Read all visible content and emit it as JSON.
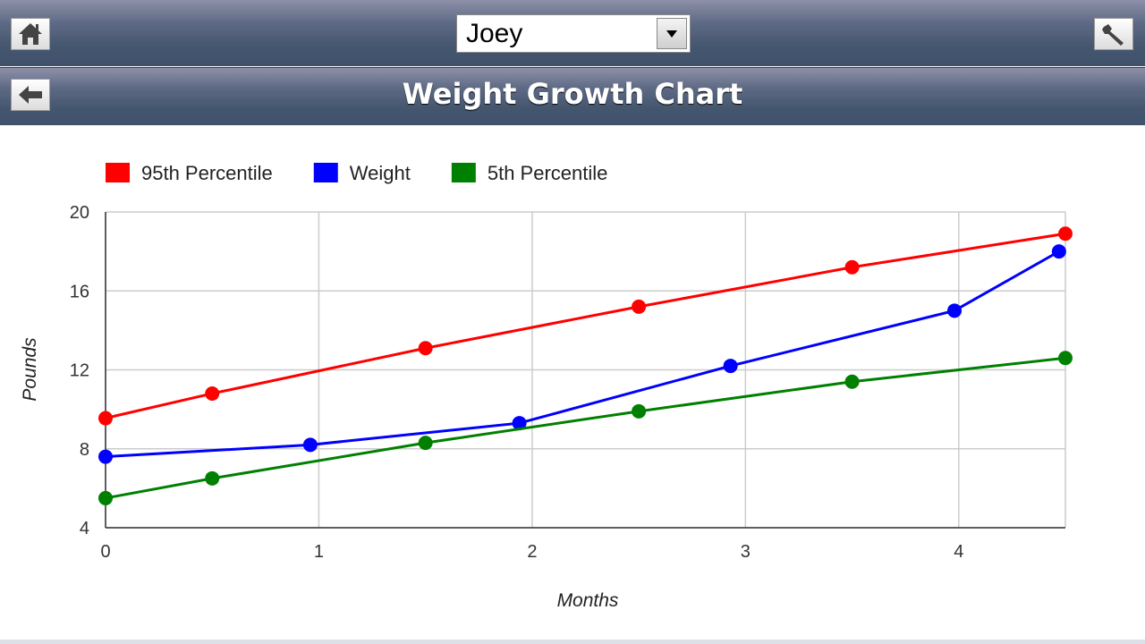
{
  "header": {
    "home_icon": "home-icon",
    "settings_icon": "wrench-icon",
    "back_icon": "arrow-left-icon",
    "child_select": {
      "selected": "Joey"
    },
    "title": "Weight Growth Chart"
  },
  "chart_data": {
    "type": "line",
    "title": "",
    "xlabel": "Months",
    "ylabel": "Pounds",
    "xlim": [
      0,
      4.5
    ],
    "ylim": [
      4,
      20
    ],
    "xticks": [
      0,
      1,
      2,
      3,
      4
    ],
    "yticks": [
      4,
      8,
      12,
      16,
      20
    ],
    "grid": true,
    "legend_position": "top-left",
    "series": [
      {
        "name": "95th Percentile",
        "color": "#ff0000",
        "points": [
          [
            0,
            9.55
          ],
          [
            0.5,
            10.8
          ],
          [
            1.5,
            13.1
          ],
          [
            2.5,
            15.2
          ],
          [
            3.5,
            17.2
          ],
          [
            4.5,
            18.9
          ]
        ]
      },
      {
        "name": "Weight",
        "color": "#0000ff",
        "points": [
          [
            0,
            7.6
          ],
          [
            0.96,
            8.2
          ],
          [
            1.94,
            9.3
          ],
          [
            2.93,
            12.2
          ],
          [
            3.98,
            15.0
          ],
          [
            4.47,
            18.0
          ]
        ]
      },
      {
        "name": "5th Percentile",
        "color": "#008000",
        "points": [
          [
            0,
            5.5
          ],
          [
            0.5,
            6.5
          ],
          [
            1.5,
            8.3
          ],
          [
            2.5,
            9.9
          ],
          [
            3.5,
            11.4
          ],
          [
            4.5,
            12.6
          ]
        ]
      }
    ]
  }
}
